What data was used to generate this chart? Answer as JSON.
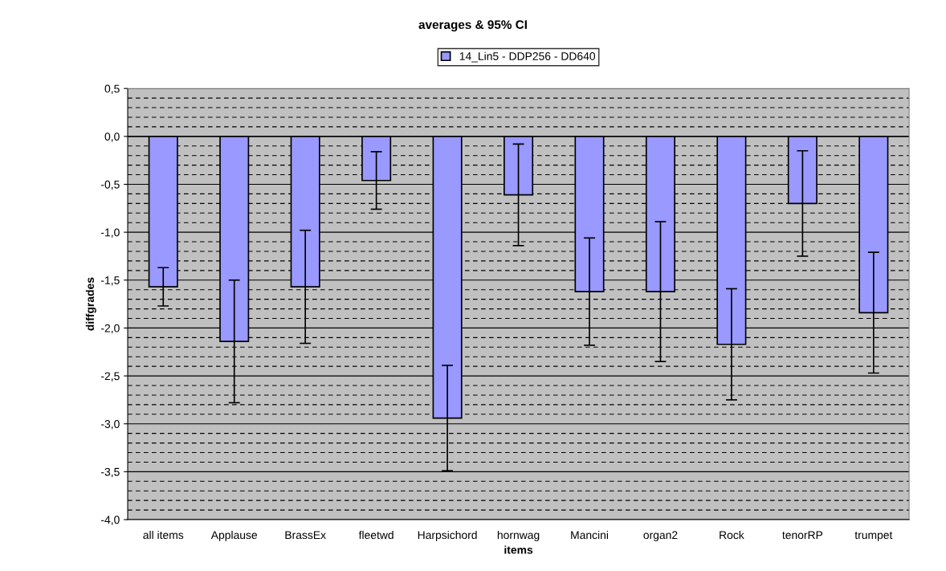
{
  "chart_data": {
    "type": "bar",
    "title": "averages & 95% CI",
    "xlabel": "items",
    "ylabel": "diffgrades",
    "categories": [
      "all items",
      "Applause",
      "BrassEx",
      "fleetwd",
      "Harpsichord",
      "hornwag",
      "Mancini",
      "organ2",
      "Rock",
      "tenorRP",
      "trumpet"
    ],
    "series": [
      {
        "name": "14_Lin5 - DDP256 - DD640",
        "color": "#9999ff",
        "values": [
          -1.57,
          -2.14,
          -1.57,
          -0.46,
          -2.94,
          -0.61,
          -1.62,
          -1.62,
          -2.17,
          -0.7,
          -1.84
        ],
        "errors": [
          0.2,
          0.64,
          0.59,
          0.3,
          0.55,
          0.53,
          0.56,
          0.73,
          0.58,
          0.55,
          0.63
        ]
      }
    ],
    "ylim": [
      -4.0,
      0.5
    ],
    "yticks": [
      {
        "value": -4.0,
        "label": "-4,0"
      },
      {
        "value": -3.5,
        "label": "-3,5"
      },
      {
        "value": -3.0,
        "label": "-3,0"
      },
      {
        "value": -2.5,
        "label": "-2,5"
      },
      {
        "value": -2.0,
        "label": "-2,0"
      },
      {
        "value": -1.5,
        "label": "-1,5"
      },
      {
        "value": -1.0,
        "label": "-1,0"
      },
      {
        "value": -0.5,
        "label": "-0,5"
      },
      {
        "value": 0.0,
        "label": "0,0"
      },
      {
        "value": 0.5,
        "label": "0,5"
      }
    ],
    "grid": true,
    "legend": "top"
  }
}
